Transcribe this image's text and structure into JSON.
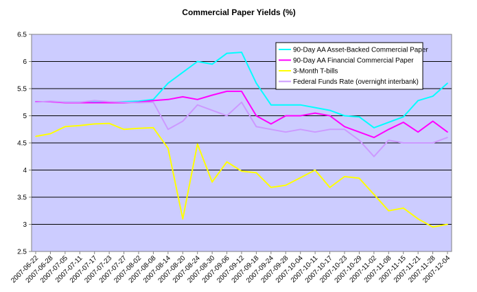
{
  "chart_data": {
    "type": "line",
    "title": "Commercial Paper Yields (%)",
    "xlabel": "",
    "ylabel": "",
    "ylim": [
      2.5,
      6.5
    ],
    "y_ticks": [
      "2.5",
      "3",
      "3.5",
      "4",
      "4.5",
      "5",
      "5.5",
      "6",
      "6.5"
    ],
    "grid": true,
    "legend_position": "top-right",
    "plot_background": "#CCCCFF",
    "x": [
      "2007-06-22",
      "2007-06-28",
      "2007-07-05",
      "2007-07-11",
      "2007-07-17",
      "2007-07-23",
      "2007-07-27",
      "2007-08-02",
      "2007-08-08",
      "2007-08-14",
      "2007-08-20",
      "2007-08-24",
      "2007-08-30",
      "2007-09-06",
      "2007-09-12",
      "2007-09-18",
      "2007-09-24",
      "2007-09-28",
      "2007-10-04",
      "2007-10-11",
      "2007-10-17",
      "2007-10-23",
      "2007-10-29",
      "2007-11-02",
      "2007-11-08",
      "2007-11-15",
      "2007-11-21",
      "2007-11-28",
      "2007-12-04"
    ],
    "series": [
      {
        "name": "90-Day AA Asset-Backed Commercial Paper",
        "color": "#00FFFF",
        "values": [
          5.26,
          5.26,
          5.25,
          5.25,
          5.25,
          5.25,
          5.26,
          5.27,
          5.3,
          5.6,
          5.8,
          6.0,
          5.95,
          6.15,
          6.17,
          5.6,
          5.2,
          5.2,
          5.2,
          5.15,
          5.1,
          5.0,
          4.98,
          4.78,
          4.88,
          4.98,
          5.28,
          5.36,
          5.6
        ]
      },
      {
        "name": "90-Day AA Financial Commercial Paper",
        "color": "#FF00FF",
        "values": [
          5.26,
          5.26,
          5.24,
          5.24,
          5.24,
          5.24,
          5.24,
          5.25,
          5.28,
          5.3,
          5.35,
          5.3,
          5.38,
          5.45,
          5.45,
          5.0,
          4.85,
          5.0,
          5.0,
          5.05,
          5.0,
          4.8,
          4.7,
          4.6,
          4.75,
          4.88,
          4.7,
          4.9,
          4.7
        ]
      },
      {
        "name": "3-Month T-bills",
        "color": "#FFFF00",
        "values": [
          4.62,
          4.67,
          4.8,
          4.82,
          4.85,
          4.86,
          4.75,
          4.77,
          4.78,
          4.4,
          3.1,
          4.48,
          3.78,
          4.15,
          3.98,
          3.95,
          3.68,
          3.72,
          3.86,
          4.0,
          3.68,
          3.88,
          3.85,
          3.55,
          3.25,
          3.3,
          3.1,
          2.95,
          3.0
        ]
      },
      {
        "name": "Federal Funds Rate (overnight interbank)",
        "color": "#CC99FF",
        "values": [
          5.25,
          5.27,
          5.25,
          5.25,
          5.28,
          5.26,
          5.25,
          5.24,
          5.25,
          4.75,
          4.9,
          5.2,
          5.1,
          5.0,
          5.25,
          4.8,
          4.75,
          4.7,
          4.75,
          4.7,
          4.75,
          4.75,
          4.55,
          4.25,
          4.55,
          4.5,
          4.5,
          4.5,
          4.6
        ]
      }
    ]
  }
}
